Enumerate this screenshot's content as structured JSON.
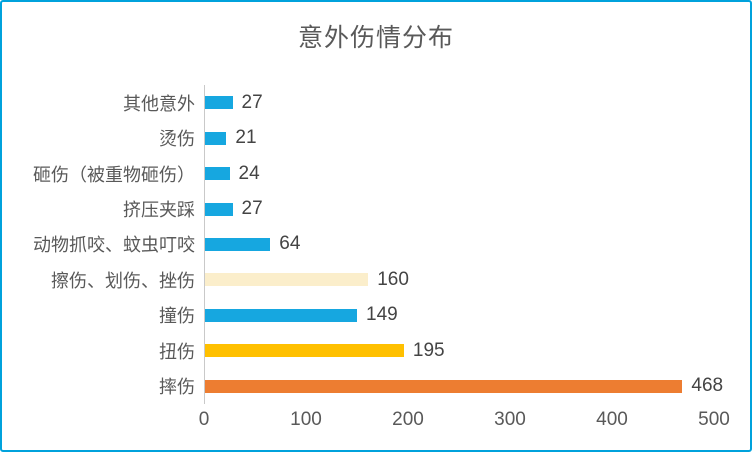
{
  "chart_data": {
    "type": "bar",
    "orientation": "horizontal",
    "title": "意外伤情分布",
    "categories": [
      "其他意外",
      "烫伤",
      "砸伤（被重物砸伤）",
      "挤压夹踩",
      "动物抓咬、蚊虫叮咬",
      "擦伤、划伤、挫伤",
      "撞伤",
      "扭伤",
      "摔伤"
    ],
    "values": [
      27,
      21,
      24,
      27,
      64,
      160,
      149,
      195,
      468
    ],
    "bar_colors": [
      "#16A7E0",
      "#16A7E0",
      "#16A7E0",
      "#16A7E0",
      "#16A7E0",
      "#FBEECB",
      "#16A7E0",
      "#FFC000",
      "#ED7D31"
    ],
    "xlabel": "",
    "ylabel": "",
    "xlim": [
      0,
      500
    ],
    "xticks": [
      0,
      100,
      200,
      300,
      400,
      500
    ],
    "grid": false,
    "legend": false,
    "value_labels_shown": true
  },
  "theme": {
    "frame_border_color": "#00A2DC",
    "axis_line_color": "#C9C9C9",
    "title_color": "#595959",
    "category_label_color": "#595959",
    "value_label_color": "#444444",
    "tick_label_color": "#595959",
    "background": "#FFFFFF"
  }
}
